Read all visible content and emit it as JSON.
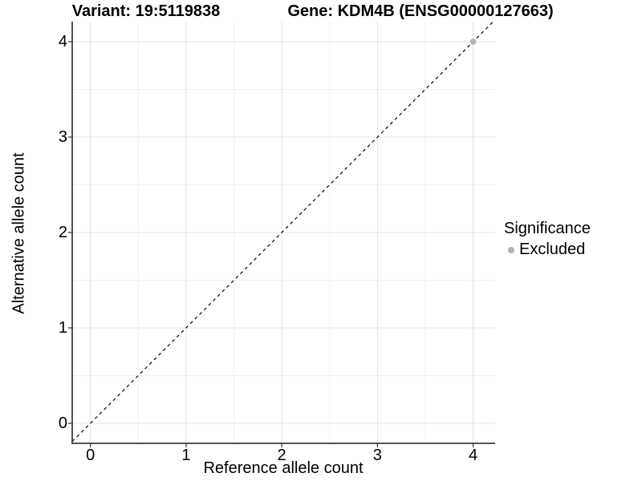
{
  "chart_data": {
    "type": "scatter",
    "title_left": "Variant: 19:5119838",
    "title_right": "Gene: KDM4B (ENSG00000127663)",
    "xlabel": "Reference allele count",
    "ylabel": "Alternative allele count",
    "x_ticks": [
      0,
      1,
      2,
      3,
      4
    ],
    "y_ticks": [
      0,
      1,
      2,
      3,
      4
    ],
    "minor_x": [
      0.5,
      1.5,
      2.5,
      3.5
    ],
    "minor_y": [
      0.5,
      1.5,
      2.5,
      3.5
    ],
    "xlim": [
      -0.19,
      4.23
    ],
    "ylim": [
      -0.21,
      4.21
    ],
    "grid": true,
    "reference_line": {
      "type": "identity",
      "style": "dashed",
      "color": "#000000"
    },
    "series": [
      {
        "name": "Excluded",
        "color": "#b3b3b3",
        "points": [
          {
            "x": 4,
            "y": 4
          }
        ]
      }
    ],
    "legend": {
      "title": "Significance",
      "position": "right",
      "items": [
        {
          "label": "Excluded",
          "color": "#b3b3b3"
        }
      ]
    },
    "colors": {
      "major_grid": "#e4e4e4",
      "minor_grid": "#f1f1f1",
      "axis_line": "#3c3c3c",
      "tick_mark": "#333333",
      "text": "#000000"
    }
  }
}
